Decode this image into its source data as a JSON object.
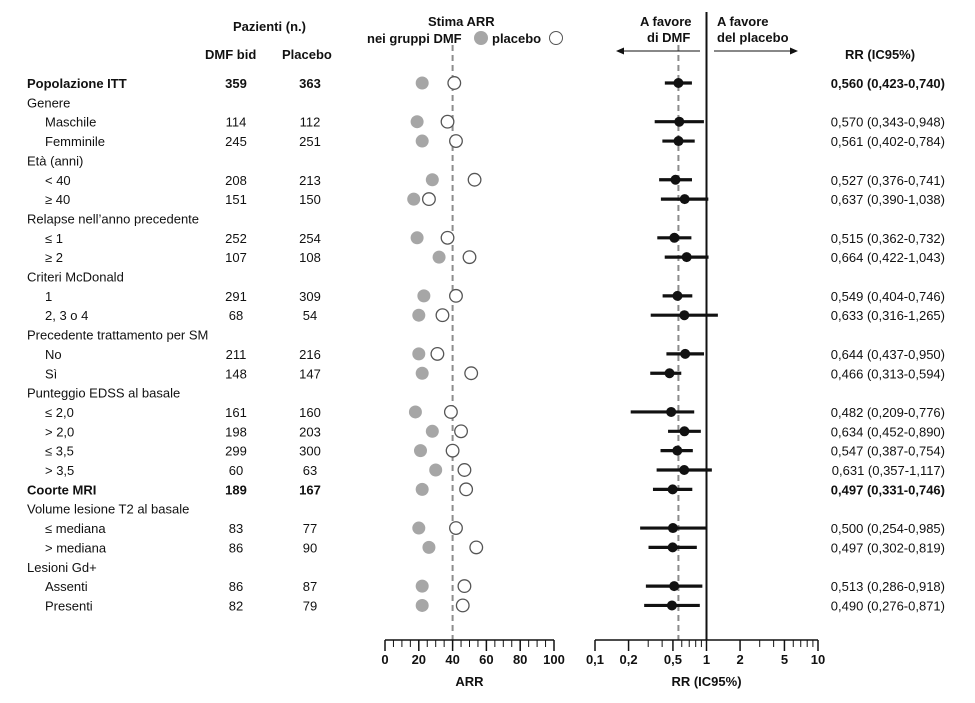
{
  "headers": {
    "patients": "Pazienti (n.)",
    "dmf": "DMF bid",
    "placebo": "Placebo",
    "arr_title": "Stima ARR",
    "arr_sub_a": "nei gruppi DMF",
    "arr_sub_b": "placebo",
    "favors_dmf_1": "A favore",
    "favors_dmf_2": "di DMF",
    "favors_placebo_1": "A favore",
    "favors_placebo_2": "del placebo",
    "rr": "RR (IC95%)"
  },
  "colors": {
    "dmf": "#a6a6a6",
    "placebo": "#ffffff",
    "ref": "#8c8c8c",
    "ink": "#111111"
  },
  "chart_data": {
    "type": "forest",
    "rows": [
      {
        "kind": "data",
        "label": "Popolazione ITT",
        "bold": true,
        "n_dmf": "359",
        "n_placebo": "363",
        "arr_dmf": 22,
        "arr_placebo": 41,
        "rr": 0.56,
        "lo": 0.423,
        "hi": 0.74,
        "rr_text": "0,560 (0,423-0,740)"
      },
      {
        "kind": "group",
        "label": "Genere"
      },
      {
        "kind": "data",
        "label": "Maschile",
        "n_dmf": "114",
        "n_placebo": "112",
        "arr_dmf": 19,
        "arr_placebo": 37,
        "rr": 0.57,
        "lo": 0.343,
        "hi": 0.948,
        "rr_text": "0,570 (0,343-0,948)"
      },
      {
        "kind": "data",
        "label": "Femminile",
        "n_dmf": "245",
        "n_placebo": "251",
        "arr_dmf": 22,
        "arr_placebo": 42,
        "rr": 0.561,
        "lo": 0.402,
        "hi": 0.784,
        "rr_text": "0,561 (0,402-0,784)"
      },
      {
        "kind": "group",
        "label": "Età (anni)"
      },
      {
        "kind": "data",
        "label": "< 40",
        "n_dmf": "208",
        "n_placebo": "213",
        "arr_dmf": 28,
        "arr_placebo": 53,
        "rr": 0.527,
        "lo": 0.376,
        "hi": 0.741,
        "rr_text": "0,527 (0,376-0,741)"
      },
      {
        "kind": "data",
        "label": "≥ 40",
        "n_dmf": "151",
        "n_placebo": "150",
        "arr_dmf": 17,
        "arr_placebo": 26,
        "rr": 0.637,
        "lo": 0.39,
        "hi": 1.038,
        "rr_text": "0,637 (0,390-1,038)"
      },
      {
        "kind": "group",
        "label": "Relapse nell’anno precedente"
      },
      {
        "kind": "data",
        "label": "≤ 1",
        "n_dmf": "252",
        "n_placebo": "254",
        "arr_dmf": 19,
        "arr_placebo": 37,
        "rr": 0.515,
        "lo": 0.362,
        "hi": 0.732,
        "rr_text": "0,515 (0,362-0,732)"
      },
      {
        "kind": "data",
        "label": "≥ 2",
        "n_dmf": "107",
        "n_placebo": "108",
        "arr_dmf": 32,
        "arr_placebo": 50,
        "rr": 0.664,
        "lo": 0.422,
        "hi": 1.043,
        "rr_text": "0,664 (0,422-1,043)"
      },
      {
        "kind": "group",
        "label": "Criteri McDonald"
      },
      {
        "kind": "data",
        "label": "1",
        "n_dmf": "291",
        "n_placebo": "309",
        "arr_dmf": 23,
        "arr_placebo": 42,
        "rr": 0.549,
        "lo": 0.404,
        "hi": 0.746,
        "rr_text": "0,549 (0,404-0,746)"
      },
      {
        "kind": "data",
        "label": "2, 3 o 4",
        "n_dmf": "68",
        "n_placebo": "54",
        "arr_dmf": 20,
        "arr_placebo": 34,
        "rr": 0.633,
        "lo": 0.316,
        "hi": 1.265,
        "rr_text": "0,633 (0,316-1,265)"
      },
      {
        "kind": "group",
        "label": "Precedente trattamento per SM"
      },
      {
        "kind": "data",
        "label": "No",
        "n_dmf": "211",
        "n_placebo": "216",
        "arr_dmf": 20,
        "arr_placebo": 31,
        "rr": 0.644,
        "lo": 0.437,
        "hi": 0.95,
        "rr_text": "0,644 (0,437-0,950)"
      },
      {
        "kind": "data",
        "label": "Sì",
        "n_dmf": "148",
        "n_placebo": "147",
        "arr_dmf": 22,
        "arr_placebo": 51,
        "rr": 0.466,
        "lo": 0.313,
        "hi": 0.594,
        "rr_text": "0,466 (0,313-0,594)"
      },
      {
        "kind": "group",
        "label": "Punteggio EDSS al basale"
      },
      {
        "kind": "data",
        "label": "≤ 2,0",
        "n_dmf": "161",
        "n_placebo": "160",
        "arr_dmf": 18,
        "arr_placebo": 39,
        "rr": 0.482,
        "lo": 0.209,
        "hi": 0.776,
        "rr_text": "0,482 (0,209-0,776)"
      },
      {
        "kind": "data",
        "label": "> 2,0",
        "n_dmf": "198",
        "n_placebo": "203",
        "arr_dmf": 28,
        "arr_placebo": 45,
        "rr": 0.634,
        "lo": 0.452,
        "hi": 0.89,
        "rr_text": "0,634 (0,452-0,890)"
      },
      {
        "kind": "data",
        "label": "≤ 3,5",
        "n_dmf": "299",
        "n_placebo": "300",
        "arr_dmf": 21,
        "arr_placebo": 40,
        "rr": 0.547,
        "lo": 0.387,
        "hi": 0.754,
        "rr_text": "0,547 (0,387-0,754)"
      },
      {
        "kind": "data",
        "label": "> 3,5",
        "n_dmf": "60",
        "n_placebo": "63",
        "arr_dmf": 30,
        "arr_placebo": 47,
        "rr": 0.631,
        "lo": 0.357,
        "hi": 1.117,
        "rr_text": "0,631 (0,357-1,117)"
      },
      {
        "kind": "data",
        "label": "Coorte MRI",
        "bold": true,
        "n_dmf": "189",
        "n_placebo": "167",
        "arr_dmf": 22,
        "arr_placebo": 48,
        "rr": 0.497,
        "lo": 0.331,
        "hi": 0.746,
        "rr_text": "0,497 (0,331-0,746)"
      },
      {
        "kind": "group",
        "label": "Volume lesione T2 al basale"
      },
      {
        "kind": "data",
        "label": "≤ mediana",
        "n_dmf": "83",
        "n_placebo": "77",
        "arr_dmf": 20,
        "arr_placebo": 42,
        "rr": 0.5,
        "lo": 0.254,
        "hi": 0.985,
        "rr_text": "0,500 (0,254-0,985)"
      },
      {
        "kind": "data",
        "label": "> mediana",
        "n_dmf": "86",
        "n_placebo": "90",
        "arr_dmf": 26,
        "arr_placebo": 54,
        "rr": 0.497,
        "lo": 0.302,
        "hi": 0.819,
        "rr_text": "0,497 (0,302-0,819)"
      },
      {
        "kind": "group",
        "label": "Lesioni Gd+"
      },
      {
        "kind": "data",
        "label": "Assenti",
        "n_dmf": "86",
        "n_placebo": "87",
        "arr_dmf": 22,
        "arr_placebo": 47,
        "rr": 0.513,
        "lo": 0.286,
        "hi": 0.918,
        "rr_text": "0,513 (0,286-0,918)"
      },
      {
        "kind": "data",
        "label": "Presenti",
        "n_dmf": "82",
        "n_placebo": "79",
        "arr_dmf": 22,
        "arr_placebo": 46,
        "rr": 0.49,
        "lo": 0.276,
        "hi": 0.871,
        "rr_text": "0,490 (0,276-0,871)"
      }
    ],
    "arr_axis": {
      "label": "ARR",
      "min": 0,
      "max": 100,
      "ticks": [
        0,
        20,
        40,
        60,
        80,
        100
      ],
      "ref": 40
    },
    "rr_axis": {
      "label": "RR (IC95%)",
      "scale": "log",
      "min": 0.1,
      "max": 10,
      "ticks": [
        0.1,
        0.2,
        0.5,
        1,
        2,
        5,
        10
      ],
      "tick_labels": [
        "0,1",
        "0,2",
        "0,5",
        "1",
        "2",
        "5",
        "10"
      ],
      "ref": 0.56,
      "null_line": 1
    }
  }
}
